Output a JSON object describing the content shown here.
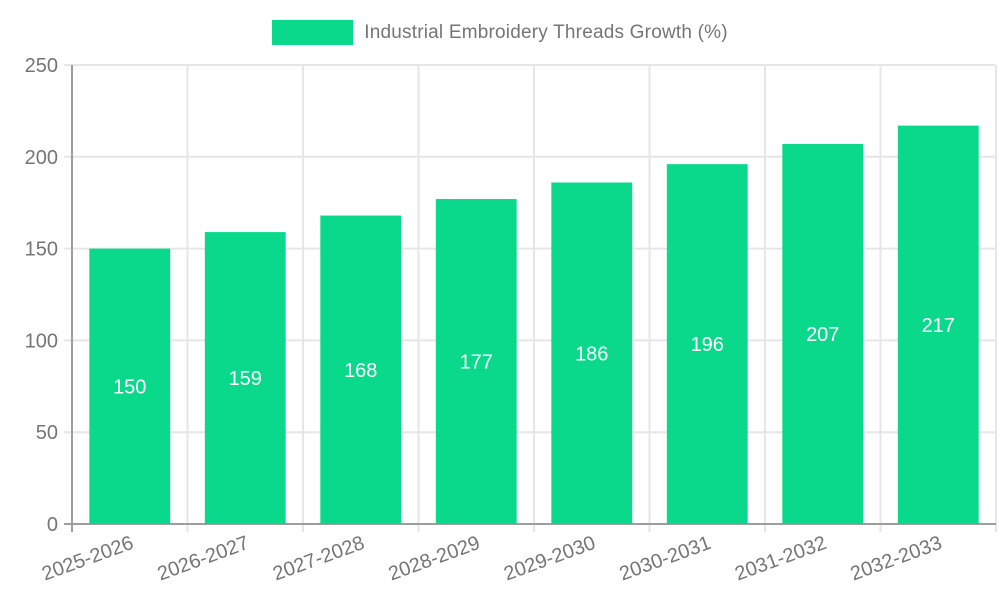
{
  "chart_data": {
    "type": "bar",
    "title": "Industrial Embroidery Threads Growth (%)",
    "categories": [
      "2025-2026",
      "2026-2027",
      "2027-2028",
      "2028-2029",
      "2029-2030",
      "2030-2031",
      "2031-2032",
      "2032-2033"
    ],
    "values": [
      150,
      159,
      168,
      177,
      186,
      196,
      207,
      217
    ],
    "xlabel": "",
    "ylabel": "",
    "ylim": [
      0,
      250
    ],
    "ytick_step": 50,
    "yticks": [
      0,
      50,
      100,
      150,
      200,
      250
    ],
    "grid": true,
    "legend_position": "top-center",
    "x_label_rotation_deg": -20,
    "colors": {
      "bar": "#0ad98c",
      "value_label": "#ffffff",
      "axis_text": "#757575",
      "axis_line": "#9e9e9e",
      "grid_line": "#e6e6e6",
      "background": "#ffffff"
    }
  }
}
